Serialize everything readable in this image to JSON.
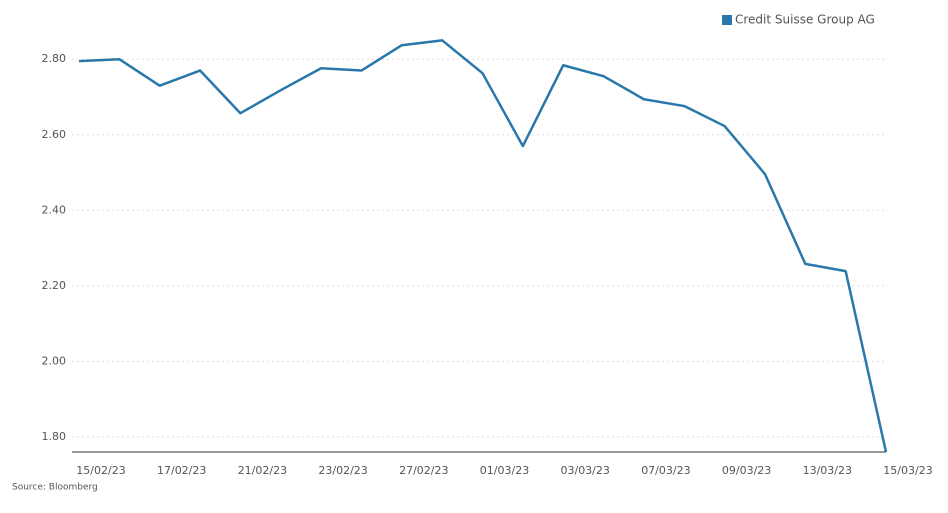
{
  "chart_data": {
    "type": "line",
    "categories": [
      "15/02/23",
      null,
      "17/02/23",
      null,
      "21/02/23",
      null,
      "23/02/23",
      null,
      "27/02/23",
      null,
      "01/03/23",
      null,
      "03/03/23",
      null,
      "07/03/23",
      null,
      "09/03/23",
      null,
      "13/03/23",
      null,
      "15/03/23"
    ],
    "series": [
      {
        "name": "Credit Suisse Group AG",
        "color": "#2a77aa",
        "values": [
          2.795,
          2.8,
          2.73,
          2.77,
          2.657,
          2.718,
          2.776,
          2.77,
          2.837,
          2.85,
          2.763,
          2.57,
          2.784,
          2.755,
          2.694,
          2.676,
          2.623,
          2.496,
          2.258,
          2.239,
          1.76
        ]
      }
    ],
    "ylim": [
      1.76,
      2.88
    ],
    "yticks": [
      {
        "value": 1.8,
        "label": "1.80"
      },
      {
        "value": 2.0,
        "label": "2.00"
      },
      {
        "value": 2.2,
        "label": "2.20"
      },
      {
        "value": 2.4,
        "label": "2.40"
      },
      {
        "value": 2.6,
        "label": "2.60"
      },
      {
        "value": 2.8,
        "label": "2.80"
      }
    ],
    "grid": true,
    "legend": "top-right",
    "source": "Source: Bloomberg"
  }
}
